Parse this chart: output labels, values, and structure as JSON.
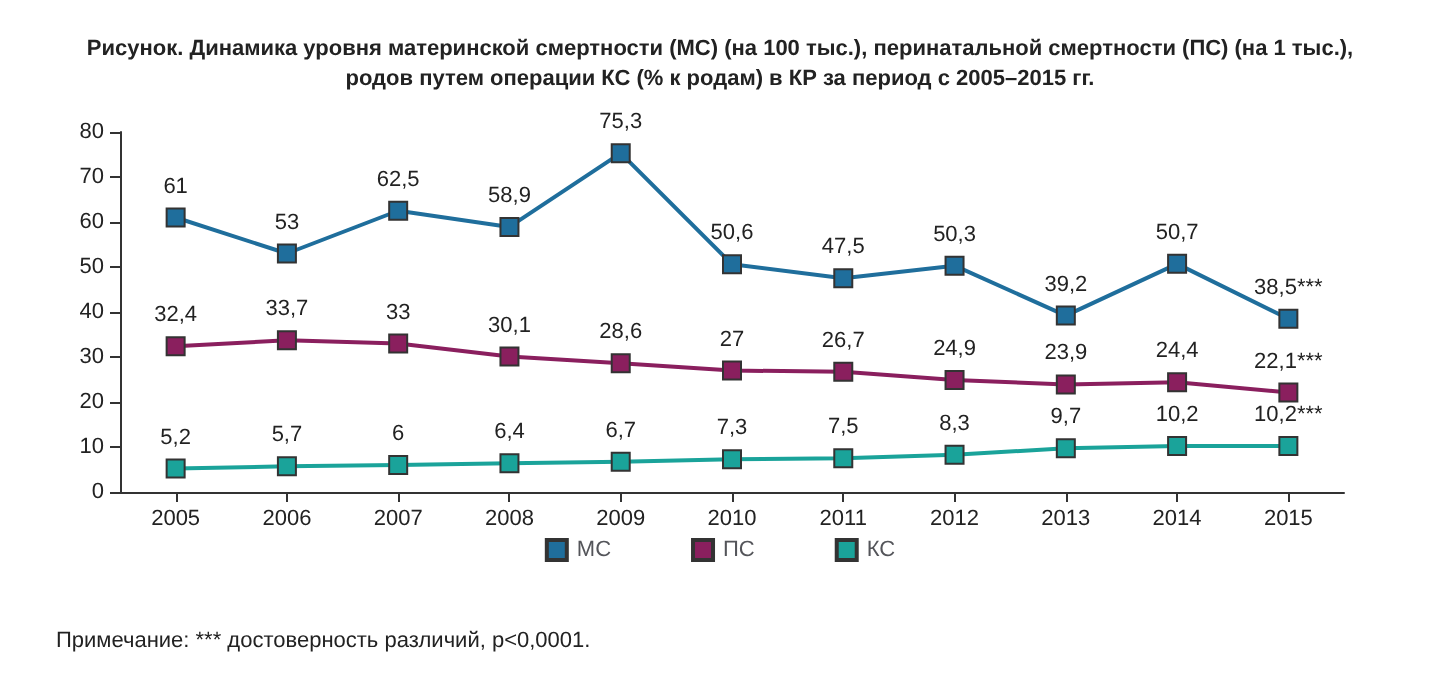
{
  "chart_data": {
    "type": "line",
    "title": "Рисунок. Динамика уровня материнской смертности (МС) (на 100 тыс.), перинатальной смертности (ПС) (на 1 тыс.),\nродов путем операции КС (% к родам) в КР за период с 2005–2015 гг.",
    "categories": [
      "2005",
      "2006",
      "2007",
      "2008",
      "2009",
      "2010",
      "2011",
      "2012",
      "2013",
      "2014",
      "2015"
    ],
    "series": [
      {
        "name": "МС",
        "color": "#1f6e9c",
        "values": [
          61,
          53,
          62.5,
          58.9,
          75.3,
          50.6,
          47.5,
          50.3,
          39.2,
          50.7,
          38.5
        ],
        "value_labels": [
          "61",
          "53",
          "62,5",
          "58,9",
          "75,3",
          "50,6",
          "47,5",
          "50,3",
          "39,2",
          "50,7",
          "38,5***"
        ]
      },
      {
        "name": "ПС",
        "color": "#8a1f5e",
        "values": [
          32.4,
          33.7,
          33,
          30.1,
          28.6,
          27,
          26.7,
          24.9,
          23.9,
          24.4,
          22.1
        ],
        "value_labels": [
          "32,4",
          "33,7",
          "33",
          "30,1",
          "28,6",
          "27",
          "26,7",
          "24,9",
          "23,9",
          "24,4",
          "22,1***"
        ]
      },
      {
        "name": "КС",
        "color": "#1aa39a",
        "values": [
          5.2,
          5.7,
          6,
          6.4,
          6.7,
          7.3,
          7.5,
          8.3,
          9.7,
          10.2,
          10.2
        ],
        "value_labels": [
          "5,2",
          "5,7",
          "6",
          "6,4",
          "6,7",
          "7,3",
          "7,5",
          "8,3",
          "9,7",
          "10,2",
          "10,2***"
        ]
      }
    ],
    "ylim": [
      0,
      80
    ],
    "yticks": [
      0,
      10,
      20,
      30,
      40,
      50,
      60,
      70,
      80
    ],
    "grid": false,
    "legend": "bottom",
    "marker": "square",
    "line_style": "solid",
    "annotations": [
      "Примечание: *** достоверность различий, p<0,0001."
    ]
  }
}
